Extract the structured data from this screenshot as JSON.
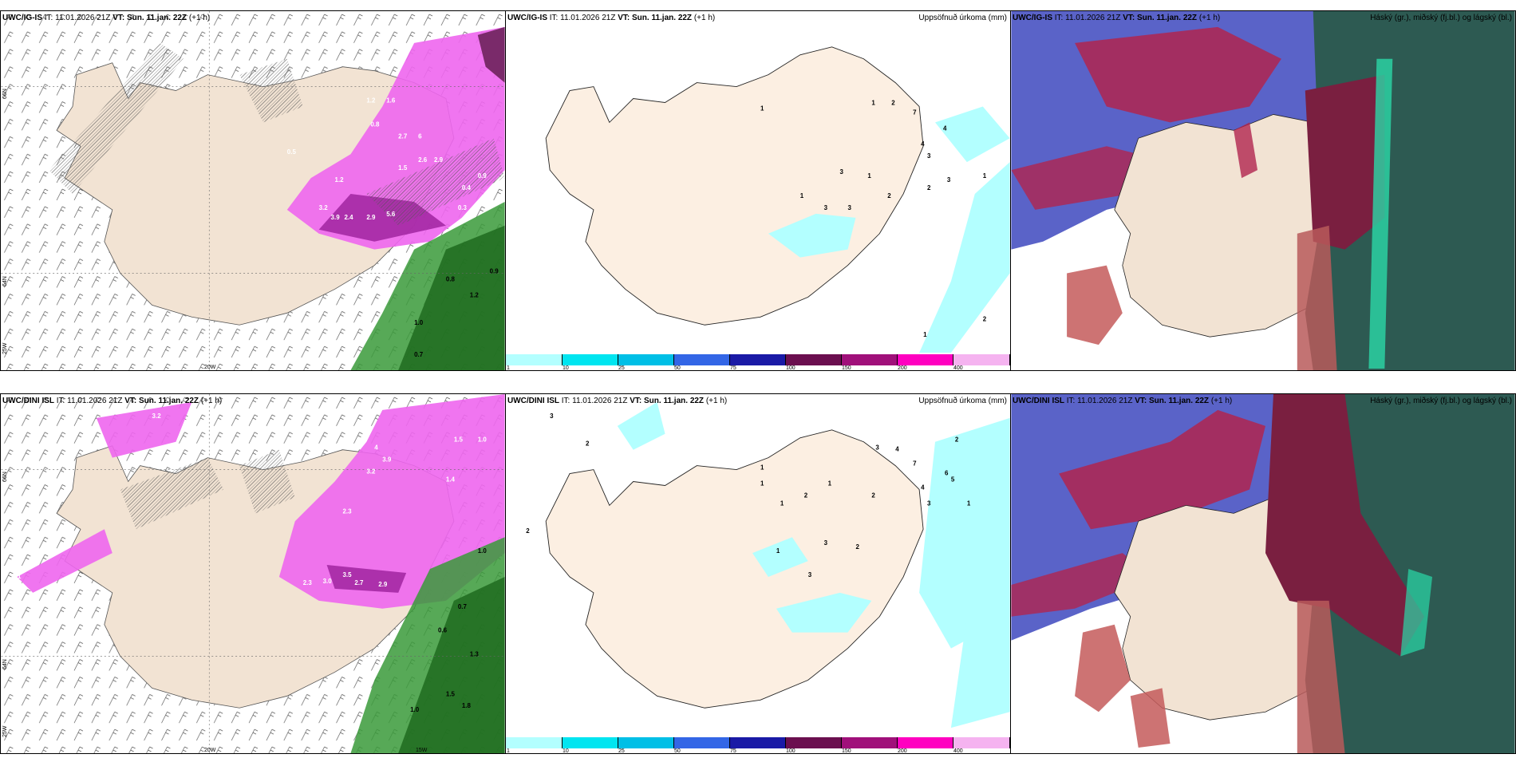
{
  "panels": [
    {
      "model": "UWC/IG-IS",
      "it_label": "IT:",
      "it": "11.01.2026 21Z",
      "vt_label": "VT:",
      "vt": "Sun. 11.jan. 22Z",
      "lead": "(+1 h)",
      "right": ""
    },
    {
      "model": "UWC/IG-IS",
      "it_label": "IT:",
      "it": "11.01.2026 21Z",
      "vt_label": "VT:",
      "vt": "Sun. 11.jan. 22Z",
      "lead": "(+1 h)",
      "right": "Uppsöfnuð úrkoma (mm)"
    },
    {
      "model": "UWC/IG-IS",
      "it_label": "IT:",
      "it": "11.01.2026 21Z",
      "vt_label": "VT:",
      "vt": "Sun. 11.jan. 22Z",
      "lead": "(+1 h)",
      "right": "Háský (gr.), miðský (fj.bl.) og lágský (bl.)"
    },
    {
      "model": "UWC/DINI ISL",
      "it_label": "IT:",
      "it": "11.01.2026 21Z",
      "vt_label": "VT:",
      "vt": "Sun. 11.jan. 22Z",
      "lead": "(+1 h)",
      "right": ""
    },
    {
      "model": "UWC/DINI ISL",
      "it_label": "IT:",
      "it": "11.01.2026 21Z",
      "vt_label": "VT:",
      "vt": "Sun. 11.jan. 22Z",
      "lead": "(+1 h)",
      "right": "Uppsöfnuð úrkoma (mm)"
    },
    {
      "model": "UWC/DINI ISL",
      "it_label": "IT:",
      "it": "11.01.2026 21Z",
      "vt_label": "VT:",
      "vt": "Sun. 11.jan. 22Z",
      "lead": "(+1 h)",
      "right": "Háský (gr.), miðský (fj.bl.) og lágský (bl.)"
    }
  ],
  "ticks": {
    "lat66": "66N",
    "lat64": "64N",
    "lon25": "25W",
    "lon20": "20W",
    "lon15": "15W"
  },
  "colorbar": {
    "labels": [
      "1",
      "10",
      "25",
      "50",
      "75",
      "100",
      "150",
      "200",
      "400"
    ],
    "colors": [
      "#b3ffff",
      "#00e5f0",
      "#00bfe6",
      "#3366e6",
      "#1a1aa6",
      "#6b0f4f",
      "#a0107a",
      "#ff00c0",
      "#f5b3f0"
    ]
  },
  "values": {
    "p1": [
      "1.2",
      "1.6",
      "1.2",
      "0.8",
      "2.7",
      "6",
      "2.6",
      "2.9",
      "3.2",
      "3.9",
      "2.4",
      "2.9",
      "5.6",
      "1.5",
      "0.5",
      "0.9",
      "0.4",
      "0.3",
      "0.8",
      "1.2",
      "1.0",
      "0.9",
      "0.7"
    ],
    "p2": [
      "1",
      "1",
      "2",
      "7",
      "4",
      "3",
      "4",
      "3",
      "2",
      "1",
      "3",
      "1",
      "3",
      "3",
      "2",
      "1",
      "1",
      "2"
    ],
    "p4": [
      "3.2",
      "4",
      "3.9",
      "1.5",
      "1.0",
      "1.4",
      "3.2",
      "2.3",
      "3.5",
      "2.3",
      "3.0",
      "2.7",
      "2.9",
      "2.1",
      "4",
      "1.0",
      "0.7",
      "0.6",
      "1.3",
      "1.5",
      "1.8",
      "1.0"
    ],
    "p5": [
      "3",
      "2",
      "2",
      "1",
      "1",
      "1",
      "2",
      "1",
      "2",
      "3",
      "4",
      "7",
      "6",
      "4",
      "5",
      "3",
      "3",
      "2",
      "1",
      "3",
      "1",
      "2",
      "2"
    ]
  }
}
